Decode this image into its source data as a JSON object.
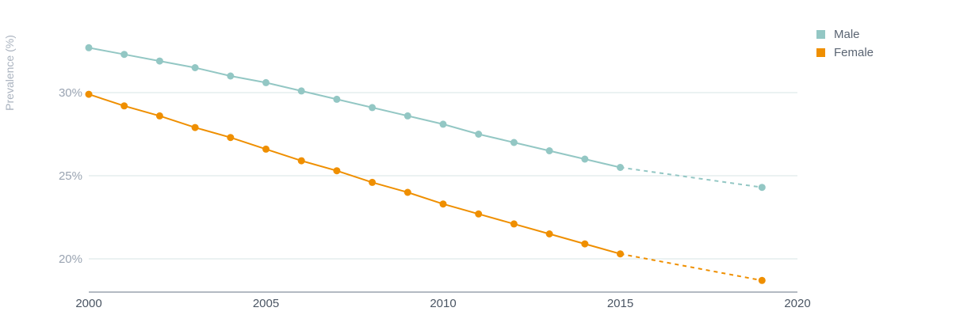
{
  "chart_data": {
    "type": "line",
    "ylabel": "Prevalence (%)",
    "xlabel": "",
    "xlim": [
      2000,
      2020
    ],
    "ylim": [
      18,
      33
    ],
    "x_ticks": [
      2000,
      2005,
      2010,
      2015,
      2020
    ],
    "y_ticks": [
      {
        "value": 20,
        "label": "20%"
      },
      {
        "value": 25,
        "label": "25%"
      },
      {
        "value": 30,
        "label": "30%"
      }
    ],
    "grid": true,
    "legend_position": "top-right",
    "projection_style": "dashed after 2015",
    "series": [
      {
        "name": "Male",
        "color": "#93c7c4",
        "x": [
          2000,
          2001,
          2002,
          2003,
          2004,
          2005,
          2006,
          2007,
          2008,
          2009,
          2010,
          2011,
          2012,
          2013,
          2014,
          2015,
          2019
        ],
        "values": [
          32.7,
          32.3,
          31.9,
          31.5,
          31.0,
          30.6,
          30.1,
          29.6,
          29.1,
          28.6,
          28.1,
          27.5,
          27.0,
          26.5,
          26.0,
          25.5,
          24.3
        ]
      },
      {
        "name": "Female",
        "color": "#ef8f00",
        "x": [
          2000,
          2001,
          2002,
          2003,
          2004,
          2005,
          2006,
          2007,
          2008,
          2009,
          2010,
          2011,
          2012,
          2013,
          2014,
          2015,
          2019
        ],
        "values": [
          29.9,
          29.2,
          28.6,
          27.9,
          27.3,
          26.6,
          25.9,
          25.3,
          24.6,
          24.0,
          23.3,
          22.7,
          22.1,
          21.5,
          20.9,
          20.3,
          18.7
        ]
      }
    ]
  }
}
